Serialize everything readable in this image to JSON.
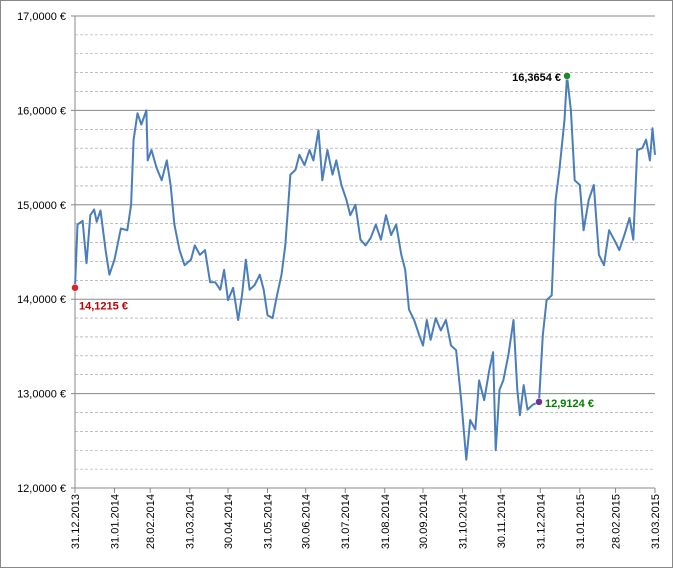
{
  "chart_data": {
    "type": "line",
    "x": [
      "2013-12-31",
      "2014-01-02",
      "2014-01-06",
      "2014-01-09",
      "2014-01-12",
      "2014-01-15",
      "2014-01-17",
      "2014-01-20",
      "2014-01-24",
      "2014-01-27",
      "2014-01-31",
      "2014-02-05",
      "2014-02-10",
      "2014-02-13",
      "2014-02-15",
      "2014-02-18",
      "2014-02-21",
      "2014-02-25",
      "2014-02-26",
      "2014-03-01",
      "2014-03-05",
      "2014-03-09",
      "2014-03-13",
      "2014-03-16",
      "2014-03-19",
      "2014-03-23",
      "2014-03-27",
      "2014-04-01",
      "2014-04-04",
      "2014-04-08",
      "2014-04-12",
      "2014-04-16",
      "2014-04-20",
      "2014-04-24",
      "2014-04-27",
      "2014-04-30",
      "2014-05-04",
      "2014-05-08",
      "2014-05-11",
      "2014-05-14",
      "2014-05-17",
      "2014-05-21",
      "2014-05-25",
      "2014-05-28",
      "2014-05-31",
      "2014-06-04",
      "2014-06-07",
      "2014-06-11",
      "2014-06-14",
      "2014-06-18",
      "2014-06-22",
      "2014-06-25",
      "2014-06-29",
      "2014-07-03",
      "2014-07-06",
      "2014-07-10",
      "2014-07-13",
      "2014-07-17",
      "2014-07-21",
      "2014-07-24",
      "2014-07-28",
      "2014-08-01",
      "2014-08-04",
      "2014-08-08",
      "2014-08-12",
      "2014-08-16",
      "2014-08-20",
      "2014-08-24",
      "2014-08-28",
      "2014-09-01",
      "2014-09-05",
      "2014-09-09",
      "2014-09-13",
      "2014-09-16",
      "2014-09-19",
      "2014-09-23",
      "2014-09-27",
      "2014-09-30",
      "2014-10-03",
      "2014-10-06",
      "2014-10-10",
      "2014-10-14",
      "2014-10-18",
      "2014-10-22",
      "2014-10-26",
      "2014-10-30",
      "2014-11-03",
      "2014-11-06",
      "2014-11-10",
      "2014-11-13",
      "2014-11-17",
      "2014-11-21",
      "2014-11-24",
      "2014-11-26",
      "2014-11-29",
      "2014-12-02",
      "2014-12-06",
      "2014-12-10",
      "2014-12-13",
      "2014-12-15",
      "2014-12-18",
      "2014-12-21",
      "2014-12-25",
      "2014-12-30",
      "2015-01-02",
      "2015-01-05",
      "2015-01-09",
      "2015-01-12",
      "2015-01-15",
      "2015-01-19",
      "2015-01-21",
      "2015-01-24",
      "2015-01-27",
      "2015-01-31",
      "2015-02-03",
      "2015-02-07",
      "2015-02-11",
      "2015-02-15",
      "2015-02-19",
      "2015-02-23",
      "2015-02-27",
      "2015-03-03",
      "2015-03-07",
      "2015-03-11",
      "2015-03-14",
      "2015-03-17",
      "2015-03-21",
      "2015-03-24",
      "2015-03-27",
      "2015-03-29",
      "2015-03-31"
    ],
    "series": [
      {
        "color": "#4a7ebb",
        "values": [
          14.1215,
          14.79,
          14.83,
          14.38,
          14.89,
          14.95,
          14.82,
          14.94,
          14.52,
          14.26,
          14.42,
          14.75,
          14.73,
          15.0,
          15.69,
          15.97,
          15.85,
          16.0,
          15.47,
          15.58,
          15.39,
          15.26,
          15.47,
          15.21,
          14.79,
          14.52,
          14.36,
          14.42,
          14.57,
          14.47,
          14.52,
          14.18,
          14.18,
          14.1,
          14.31,
          13.99,
          14.12,
          13.78,
          14.04,
          14.42,
          14.1,
          14.15,
          14.26,
          14.1,
          13.83,
          13.8,
          14.01,
          14.26,
          14.57,
          15.32,
          15.37,
          15.53,
          15.42,
          15.58,
          15.47,
          15.79,
          15.26,
          15.58,
          15.32,
          15.47,
          15.21,
          15.05,
          14.89,
          15.0,
          14.63,
          14.57,
          14.65,
          14.79,
          14.63,
          14.89,
          14.68,
          14.79,
          14.47,
          14.31,
          13.89,
          13.78,
          13.62,
          13.51,
          13.78,
          13.57,
          13.8,
          13.67,
          13.78,
          13.51,
          13.46,
          12.93,
          12.3,
          12.72,
          12.62,
          13.14,
          12.93,
          13.25,
          13.44,
          12.4,
          13.04,
          13.14,
          13.41,
          13.78,
          13.04,
          12.77,
          13.09,
          12.83,
          12.88,
          12.9124,
          13.62,
          13.99,
          14.04,
          15.05,
          15.37,
          15.9,
          16.3654,
          16.0,
          15.26,
          15.21,
          14.73,
          15.05,
          15.21,
          14.47,
          14.36,
          14.73,
          14.63,
          14.52,
          14.68,
          14.86,
          14.63,
          15.58,
          15.6,
          15.69,
          15.47,
          15.81,
          15.53
        ]
      }
    ],
    "xlim": [
      "2013-12-31",
      "2015-03-31"
    ],
    "xticks": [
      {
        "value": "2013-12-31",
        "label": "31.12.2013"
      },
      {
        "value": "2014-01-31",
        "label": "31.01.2014"
      },
      {
        "value": "2014-02-28",
        "label": "28.02.2014"
      },
      {
        "value": "2014-03-31",
        "label": "31.03.2014"
      },
      {
        "value": "2014-04-30",
        "label": "30.04.2014"
      },
      {
        "value": "2014-05-31",
        "label": "31.05.2014"
      },
      {
        "value": "2014-06-30",
        "label": "30.06.2014"
      },
      {
        "value": "2014-07-31",
        "label": "31.07.2014"
      },
      {
        "value": "2014-08-31",
        "label": "31.08.2014"
      },
      {
        "value": "2014-09-30",
        "label": "30.09.2014"
      },
      {
        "value": "2014-10-31",
        "label": "31.10.2014"
      },
      {
        "value": "2014-11-30",
        "label": "30.11.2014"
      },
      {
        "value": "2014-12-31",
        "label": "31.12.2014"
      },
      {
        "value": "2015-01-31",
        "label": "31.01.2015"
      },
      {
        "value": "2015-02-28",
        "label": "28.02.2015"
      },
      {
        "value": "2015-03-31",
        "label": "31.03.2015"
      }
    ],
    "ylim": [
      12,
      17
    ],
    "yticks": [
      {
        "value": 12,
        "label": "12,0000 €"
      },
      {
        "value": 13,
        "label": "13,0000 €"
      },
      {
        "value": 14,
        "label": "14,0000 €"
      },
      {
        "value": 15,
        "label": "15,0000 €"
      },
      {
        "value": 16,
        "label": "16,0000 €"
      },
      {
        "value": 17,
        "label": "17,0000 €"
      }
    ],
    "yminorticks": [
      12.2,
      12.4,
      12.6,
      12.8,
      13.2,
      13.4,
      13.6,
      13.8,
      14.2,
      14.4,
      14.6,
      14.8,
      15.2,
      15.4,
      15.6,
      15.8,
      16.2,
      16.4,
      16.6,
      16.8
    ],
    "grid": true,
    "annotations": [
      {
        "x": "2013-12-31",
        "value": 14.1215,
        "label": "14,1215 €",
        "color": "#e0202a",
        "label_color": "#c00000",
        "position": "below-right"
      },
      {
        "x": "2015-01-21",
        "value": 16.3654,
        "label": "16,3654 €",
        "color": "#1a8a2a",
        "label_color": "#000000",
        "position": "left"
      },
      {
        "x": "2014-12-30",
        "value": 12.9124,
        "label": "12,9124 €",
        "color": "#7030a0",
        "label_color": "#008000",
        "position": "right"
      }
    ]
  }
}
